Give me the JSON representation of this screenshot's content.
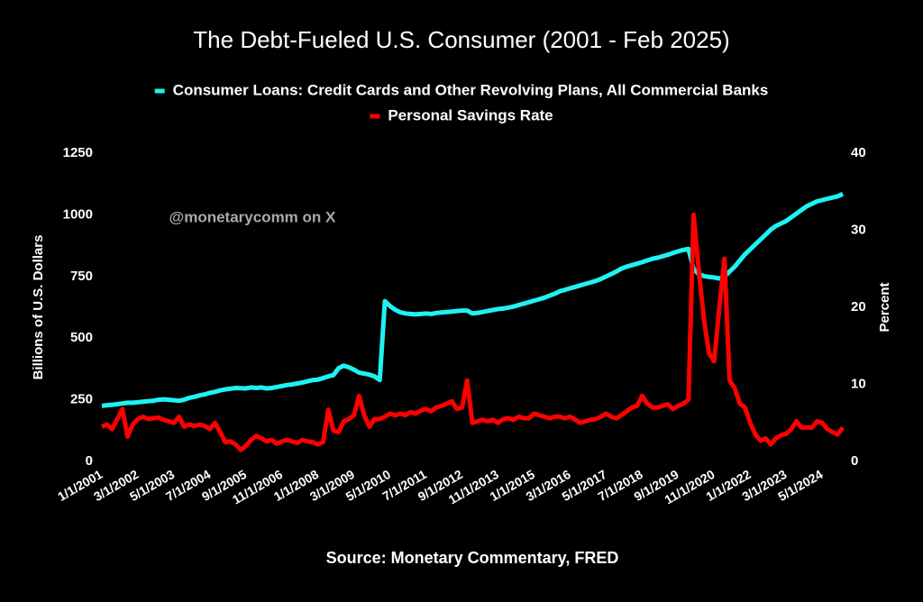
{
  "chart_data": {
    "type": "line",
    "title": "The Debt-Fueled U.S. Consumer (2001 - Feb 2025)",
    "annotation": "@monetarycomm on X",
    "source": "Source: Monetary Commentary, FRED",
    "ylabel": "Billions of U.S. Dollars",
    "y2label": "Percent",
    "ylim": [
      0,
      1250
    ],
    "yticks": [
      0,
      250,
      500,
      750,
      1000,
      1250
    ],
    "y2lim": [
      0,
      40
    ],
    "y2ticks": [
      0,
      10,
      20,
      30,
      40
    ],
    "grid": false,
    "legend": "top",
    "categories": [
      "1/1/2001",
      null,
      null,
      null,
      null,
      null,
      null,
      "3/1/2002",
      null,
      null,
      null,
      null,
      null,
      null,
      "5/1/2003",
      null,
      null,
      null,
      null,
      null,
      null,
      "7/1/2004",
      null,
      null,
      null,
      null,
      null,
      null,
      "9/1/2005",
      null,
      null,
      null,
      null,
      null,
      null,
      "11/1/2006",
      null,
      null,
      null,
      null,
      null,
      null,
      "1/1/2008",
      null,
      null,
      null,
      null,
      null,
      null,
      "3/1/2009",
      null,
      null,
      null,
      null,
      null,
      null,
      "5/1/2010",
      null,
      null,
      null,
      null,
      null,
      null,
      "7/1/2011",
      null,
      null,
      null,
      null,
      null,
      null,
      "9/1/2012",
      null,
      null,
      null,
      null,
      null,
      null,
      "11/1/2013",
      null,
      null,
      null,
      null,
      null,
      null,
      "1/1/2015",
      null,
      null,
      null,
      null,
      null,
      null,
      "3/1/2016",
      null,
      null,
      null,
      null,
      null,
      null,
      "5/1/2017",
      null,
      null,
      null,
      null,
      null,
      null,
      "7/1/2018",
      null,
      null,
      null,
      null,
      null,
      null,
      "9/1/2019",
      null,
      null,
      null,
      null,
      null,
      null,
      "11/1/2020",
      null,
      null,
      null,
      null,
      null,
      null,
      "1/1/2022",
      null,
      null,
      null,
      null,
      null,
      null,
      "3/1/2023",
      null,
      null,
      null,
      null,
      null,
      null,
      "5/1/2024",
      null,
      null,
      null,
      null
    ],
    "series": [
      {
        "name": "Consumer Loans: Credit Cards and Other Revolving Plans, All Commercial Banks",
        "color": "#1ff2f2",
        "axis": "y",
        "values": [
          225,
          228,
          230,
          232,
          235,
          238,
          238,
          240,
          242,
          244,
          246,
          250,
          252,
          250,
          248,
          246,
          250,
          258,
          262,
          268,
          272,
          278,
          282,
          288,
          292,
          295,
          298,
          297,
          296,
          300,
          298,
          300,
          296,
          298,
          302,
          306,
          310,
          312,
          316,
          320,
          325,
          330,
          332,
          338,
          345,
          350,
          378,
          388,
          382,
          372,
          360,
          356,
          352,
          345,
          330,
          650,
          630,
          615,
          605,
          600,
          598,
          596,
          598,
          600,
          598,
          602,
          604,
          606,
          608,
          610,
          612,
          612,
          600,
          602,
          606,
          610,
          614,
          618,
          620,
          624,
          628,
          634,
          640,
          646,
          652,
          658,
          664,
          672,
          680,
          690,
          696,
          702,
          708,
          714,
          720,
          726,
          732,
          740,
          750,
          760,
          770,
          782,
          790,
          796,
          802,
          808,
          815,
          822,
          826,
          832,
          838,
          845,
          852,
          858,
          862,
          780,
          760,
          752,
          748,
          746,
          742,
          750,
          770,
          790,
          815,
          840,
          860,
          880,
          900,
          920,
          940,
          955,
          965,
          975,
          990,
          1005,
          1020,
          1035,
          1045,
          1055,
          1060,
          1065,
          1070,
          1075,
          1085
        ]
      },
      {
        "name": "Personal Savings Rate",
        "color": "#ff0000",
        "axis": "y2",
        "values": [
          4.5,
          4.8,
          4.2,
          5.5,
          6.8,
          3.2,
          4.8,
          5.5,
          5.8,
          5.5,
          5.6,
          5.7,
          5.4,
          5.2,
          5.0,
          5.8,
          4.5,
          4.8,
          4.6,
          4.8,
          4.6,
          4.2,
          5.0,
          3.8,
          2.5,
          2.6,
          2.2,
          1.5,
          2.0,
          2.8,
          3.3,
          3.0,
          2.6,
          2.8,
          2.3,
          2.6,
          2.8,
          2.6,
          2.4,
          2.8,
          2.6,
          2.5,
          2.2,
          2.5,
          6.7,
          4.0,
          3.8,
          5.2,
          5.5,
          6.0,
          8.5,
          6.0,
          4.5,
          5.5,
          5.5,
          5.8,
          6.2,
          6.0,
          6.2,
          6.0,
          6.4,
          6.2,
          6.6,
          6.8,
          6.5,
          7.0,
          7.2,
          7.5,
          7.8,
          6.8,
          7.0,
          10.5,
          5.0,
          5.2,
          5.4,
          5.2,
          5.4,
          5.0,
          5.5,
          5.6,
          5.4,
          5.8,
          5.6,
          5.6,
          6.2,
          6.0,
          5.8,
          5.6,
          5.8,
          5.8,
          5.6,
          5.8,
          5.4,
          5.0,
          5.2,
          5.4,
          5.5,
          5.8,
          6.2,
          5.8,
          5.6,
          6.0,
          6.5,
          7.0,
          7.2,
          8.5,
          7.5,
          7.0,
          7.0,
          7.2,
          7.4,
          6.8,
          7.2,
          7.5,
          8.0,
          32.0,
          24.9,
          18.5,
          14.0,
          13.0,
          19.9,
          26.3,
          10.5,
          9.5,
          7.5,
          7.0,
          5.0,
          3.5,
          2.7,
          3.0,
          2.2,
          3.0,
          3.4,
          3.6,
          4.2,
          5.2,
          4.4,
          4.4,
          4.4,
          5.2,
          5.0,
          4.2,
          3.8,
          3.5,
          4.4
        ]
      }
    ]
  }
}
